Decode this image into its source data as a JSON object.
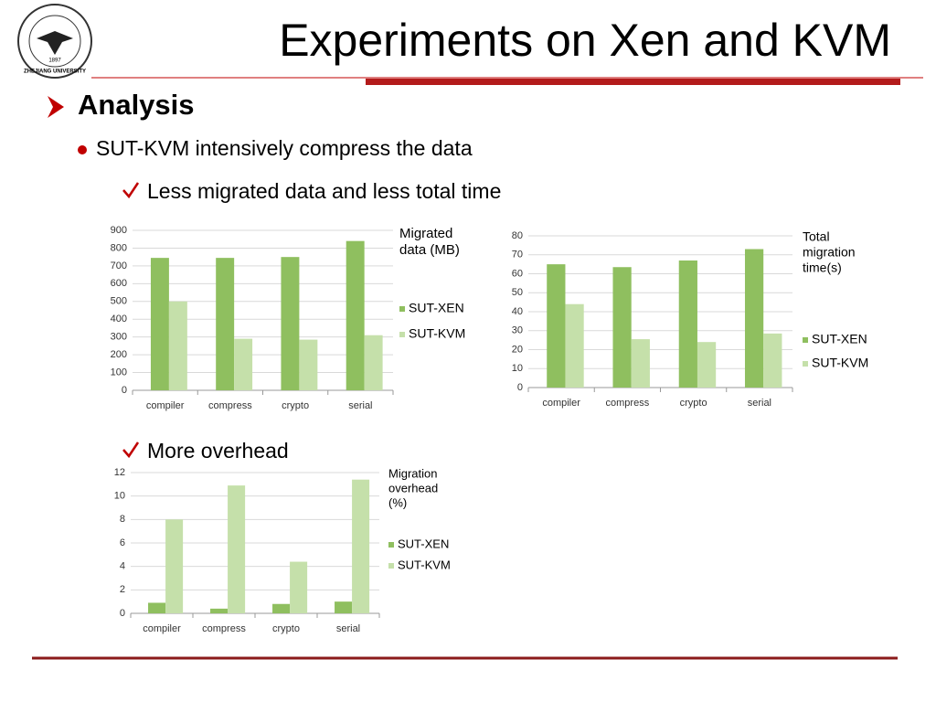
{
  "slide": {
    "title": "Experiments on Xen and KVM",
    "heading": "Analysis",
    "bullet": "SUT-KVM intensively compress the data",
    "checks": [
      "Less migrated data and less total time",
      "More overhead"
    ],
    "logo": {
      "year": "1897",
      "name": "ZHEJIANG UNIVERSITY"
    }
  },
  "chart_data": [
    {
      "type": "bar",
      "title": [
        "Migrated",
        "data (MB)"
      ],
      "categories": [
        "compiler",
        "compress",
        "crypto",
        "serial"
      ],
      "series": [
        {
          "name": "SUT-XEN",
          "color": "#8fbf5f",
          "values": [
            745,
            745,
            750,
            840
          ]
        },
        {
          "name": "SUT-KVM",
          "color": "#c5e0aa",
          "values": [
            500,
            290,
            285,
            310
          ]
        }
      ],
      "ylim": [
        0,
        900
      ],
      "yticks": [
        0,
        100,
        200,
        300,
        400,
        500,
        600,
        700,
        800,
        900
      ],
      "grid": true
    },
    {
      "type": "bar",
      "title": [
        "Total",
        "migration",
        "time(s)"
      ],
      "categories": [
        "compiler",
        "compress",
        "crypto",
        "serial"
      ],
      "series": [
        {
          "name": "SUT-XEN",
          "color": "#8fbf5f",
          "values": [
            65,
            63.5,
            67,
            73
          ]
        },
        {
          "name": "SUT-KVM",
          "color": "#c5e0aa",
          "values": [
            44,
            25.5,
            24,
            28.5
          ]
        }
      ],
      "ylim": [
        0,
        80
      ],
      "yticks": [
        0,
        10,
        20,
        30,
        40,
        50,
        60,
        70,
        80
      ],
      "grid": true
    },
    {
      "type": "bar",
      "title": [
        "Migration",
        "overhead",
        "(%)"
      ],
      "categories": [
        "compiler",
        "compress",
        "crypto",
        "serial"
      ],
      "series": [
        {
          "name": "SUT-XEN",
          "color": "#8fbf5f",
          "values": [
            0.9,
            0.4,
            0.8,
            1.0
          ]
        },
        {
          "name": "SUT-KVM",
          "color": "#c5e0aa",
          "values": [
            8.0,
            10.9,
            4.4,
            11.4
          ]
        }
      ],
      "ylim": [
        0,
        12
      ],
      "yticks": [
        0,
        2,
        4,
        6,
        8,
        10,
        12
      ],
      "grid": true
    }
  ]
}
